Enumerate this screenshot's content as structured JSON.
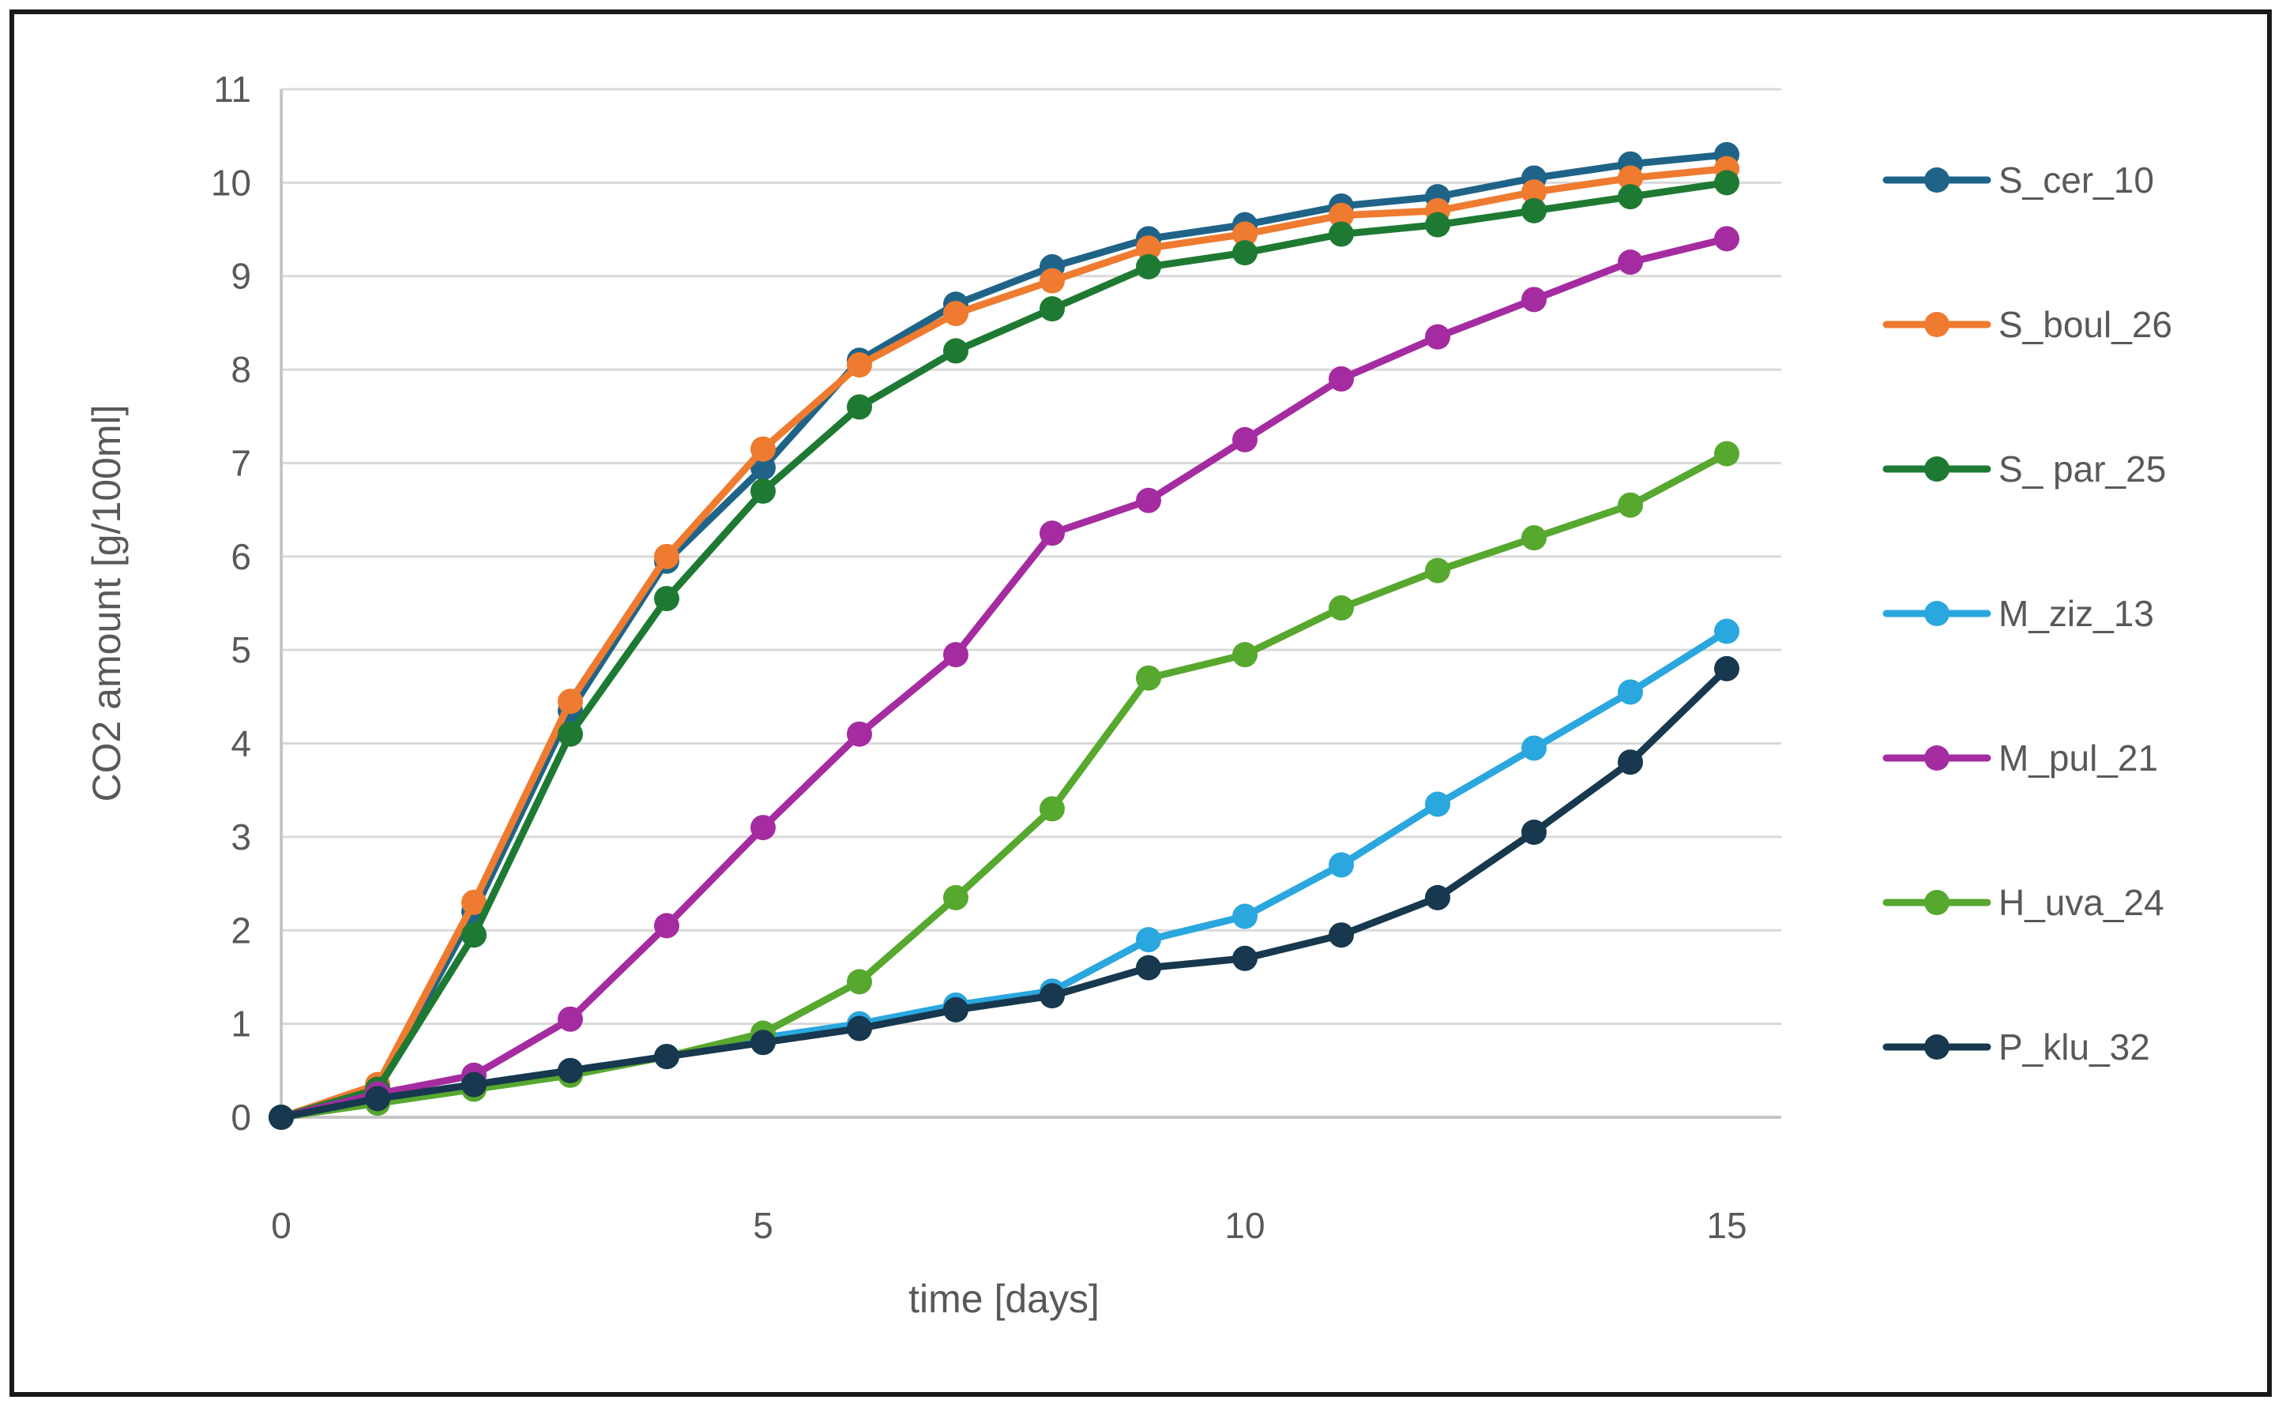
{
  "chart_data": {
    "type": "line",
    "title": "",
    "xlabel": "time [days]",
    "ylabel": "CO2 amount [g/100ml]",
    "x": [
      0,
      1,
      2,
      3,
      4,
      5,
      6,
      7,
      8,
      9,
      10,
      11,
      12,
      13,
      14,
      15
    ],
    "x_tick_labels": [
      "0",
      "5",
      "10",
      "15"
    ],
    "x_tick_values": [
      0,
      5,
      10,
      15
    ],
    "y_tick_labels": [
      "0",
      "1",
      "2",
      "3",
      "4",
      "5",
      "6",
      "7",
      "8",
      "9",
      "10",
      "11"
    ],
    "y_tick_values": [
      0,
      1,
      2,
      3,
      4,
      5,
      6,
      7,
      8,
      9,
      10,
      11
    ],
    "xlim": [
      0,
      15.55
    ],
    "ylim": [
      0,
      11
    ],
    "grid": true,
    "legend_position": "right",
    "grid_color": "#D9D9D9",
    "axis_line_color": "#C6C6C6",
    "text_color": "#595959",
    "border_color": "#1a1a1a",
    "series": [
      {
        "name": "S_cer_10",
        "color": "#1F6488",
        "values": [
          0,
          0.3,
          2.2,
          4.35,
          5.95,
          6.95,
          8.1,
          8.7,
          9.1,
          9.4,
          9.55,
          9.75,
          9.85,
          10.05,
          10.2,
          10.3
        ]
      },
      {
        "name": "S_boul_26",
        "color": "#EE7B30",
        "values": [
          0,
          0.35,
          2.3,
          4.45,
          6.0,
          7.15,
          8.05,
          8.6,
          8.95,
          9.3,
          9.45,
          9.65,
          9.7,
          9.9,
          10.05,
          10.15
        ]
      },
      {
        "name": "S_ par_25",
        "color": "#1E7A33",
        "values": [
          0,
          0.3,
          1.95,
          4.1,
          5.55,
          6.7,
          7.6,
          8.2,
          8.65,
          9.1,
          9.25,
          9.45,
          9.55,
          9.7,
          9.85,
          10.0
        ]
      },
      {
        "name": "M_ziz_13",
        "color": "#2AA7DE",
        "values": [
          0,
          0.2,
          0.35,
          0.5,
          0.65,
          0.85,
          1.0,
          1.2,
          1.35,
          1.9,
          2.15,
          2.7,
          3.35,
          3.95,
          4.55,
          5.2
        ]
      },
      {
        "name": "M_pul_21",
        "color": "#A42CA0",
        "values": [
          0,
          0.25,
          0.45,
          1.05,
          2.05,
          3.1,
          4.1,
          4.95,
          6.25,
          6.6,
          7.25,
          7.9,
          8.35,
          8.75,
          9.15,
          9.4
        ]
      },
      {
        "name": "H_uva_24",
        "color": "#57A82F",
        "values": [
          0,
          0.15,
          0.3,
          0.45,
          0.65,
          0.9,
          1.45,
          2.35,
          3.3,
          4.7,
          4.95,
          5.45,
          5.85,
          6.2,
          6.55,
          7.1
        ]
      },
      {
        "name": "P_klu_32",
        "color": "#17384E",
        "values": [
          0,
          0.2,
          0.35,
          0.5,
          0.65,
          0.8,
          0.95,
          1.15,
          1.3,
          1.6,
          1.7,
          1.95,
          2.35,
          3.05,
          3.8,
          4.8
        ]
      }
    ]
  }
}
